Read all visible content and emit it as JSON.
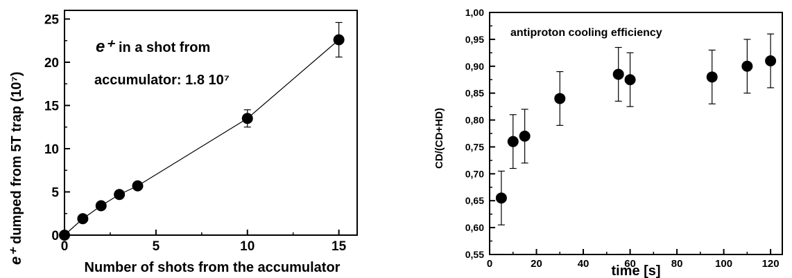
{
  "chart_data": [
    {
      "type": "line",
      "xlabel": "Number of shots from the accumulator",
      "ylabel": "dumped from 5T trap (10⁷)",
      "ylabel_prefix": "e⁺",
      "xlim": [
        0,
        16
      ],
      "ylim": [
        0,
        26
      ],
      "xticks": [
        "0",
        "5",
        "10",
        "15"
      ],
      "yticks": [
        "0",
        "5",
        "10",
        "15",
        "20",
        "25"
      ],
      "annotation": {
        "line1_symbol": "e⁺",
        "line1_text": "in a shot from",
        "line2_text": "accumulator:  1.8 10⁷"
      },
      "series": [
        {
          "x": [
            0,
            1,
            2,
            3,
            4,
            10,
            15
          ],
          "y": [
            0,
            1.9,
            3.4,
            4.7,
            5.7,
            13.5,
            22.6
          ],
          "yerr": [
            0,
            0,
            0,
            0,
            0,
            1.0,
            2.0
          ]
        }
      ]
    },
    {
      "type": "scatter",
      "title": "antiproton cooling efficiency",
      "xlabel": "time [s]",
      "ylabel": "CD/(CD+HD)",
      "xlim": [
        0,
        125
      ],
      "ylim": [
        0.55,
        1.0
      ],
      "xticks": [
        "0",
        "20",
        "40",
        "60",
        "80",
        "100",
        "120"
      ],
      "yticks": [
        "0,55",
        "0,60",
        "0,65",
        "0,70",
        "0,75",
        "0,80",
        "0,85",
        "0,90",
        "0,95",
        "1,00"
      ],
      "series": [
        {
          "x": [
            5,
            10,
            15,
            30,
            55,
            60,
            95,
            110,
            120
          ],
          "y": [
            0.655,
            0.76,
            0.77,
            0.84,
            0.885,
            0.875,
            0.88,
            0.9,
            0.91
          ],
          "yerr": [
            0.05,
            0.05,
            0.05,
            0.05,
            0.05,
            0.05,
            0.05,
            0.05,
            0.05
          ]
        }
      ]
    }
  ]
}
